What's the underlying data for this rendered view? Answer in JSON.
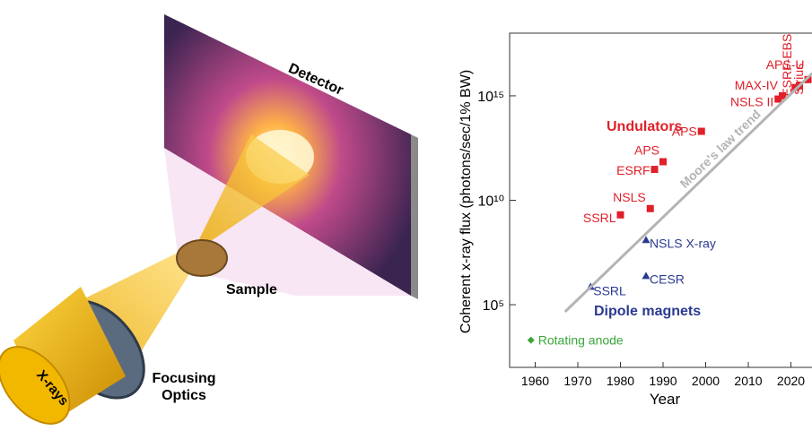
{
  "illustration": {
    "detector": "Detector",
    "sample": "Sample",
    "optics": [
      "Focusing",
      "Optics"
    ],
    "source": "X-rays"
  },
  "chart_data": {
    "type": "scatter",
    "xlabel": "Year",
    "ylabel": "Coherent x-ray flux (photons/sec/1% BW)",
    "xlim": [
      1954,
      2026
    ],
    "xticks": [
      1960,
      1970,
      1980,
      1990,
      2000,
      2010,
      2020
    ],
    "ylim": [
      100,
      1e+18
    ],
    "yticks": [
      {
        "value": 100000,
        "label": "10⁵"
      },
      {
        "value": 10000000000,
        "label": "10¹⁰"
      },
      {
        "value": 1000000000000000,
        "label": "10¹⁵"
      }
    ],
    "log_y": true,
    "series": [
      {
        "name": "Undulators",
        "color": "#e0202a",
        "marker": "square",
        "x": [
          1980,
          1987,
          1988,
          1990,
          1999,
          2017,
          2018,
          2021,
          2022,
          2024
        ],
        "values": [
          2000000000.0,
          4000000000.0,
          300000000000.0,
          700000000000.0,
          20000000000000.0,
          700000000000000.0,
          1000000000000000.0,
          2500000000000000.0,
          3000000000000000.0,
          6000000000000000.0
        ],
        "labels": [
          "SSRL",
          "NSLS",
          "ESRF",
          "APS",
          "APS",
          "NSLS II",
          "MAX-IV",
          "ESRF-EBS",
          "Sirius",
          "APS-U"
        ]
      },
      {
        "name": "Dipole magnets",
        "color": "#2a3a92",
        "marker": "triangle",
        "x": [
          1973,
          1986,
          1986
        ],
        "values": [
          700000,
          120000000,
          2300000
        ],
        "labels": [
          "SSRL",
          "NSLS X-ray",
          "CESR"
        ]
      },
      {
        "name": "Rotating anode",
        "color": "#3aa63a",
        "marker": "diamond",
        "x": [
          1959
        ],
        "values": [
          2000
        ]
      },
      {
        "name": "Moore's law trend",
        "color": "#b4b4b4",
        "marker": "line",
        "x": [
          1967,
          2025
        ],
        "values": [
          46000,
          12000000000000000
        ]
      }
    ]
  }
}
